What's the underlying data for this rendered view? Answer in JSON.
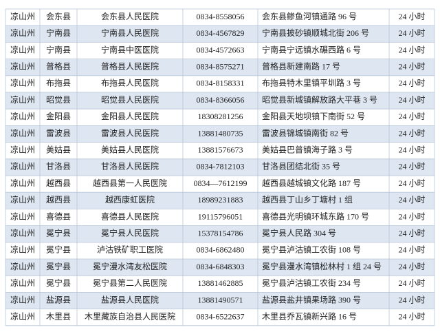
{
  "table": {
    "rows": [
      [
        "凉山州",
        "会东县",
        "会东县人民医院",
        "0834-8558056",
        "会东县鲹鱼河镇通路 96 号",
        "24 小时"
      ],
      [
        "凉山州",
        "宁南县",
        "宁南县人民医院",
        "0834-4567829",
        "宁南县披砂镇顺城北街 206 号",
        "24 小时"
      ],
      [
        "凉山州",
        "宁南县",
        "宁南县中医医院",
        "0834-4572663",
        "宁南县宁远镇水碾西路 6 号",
        "24 小时"
      ],
      [
        "凉山州",
        "普格县",
        "普格县人民医院",
        "0834-8575271",
        "普格县新建南路 17 号",
        "24 小时"
      ],
      [
        "凉山州",
        "布拖县",
        "布拖县人民医院",
        "0834-8158331",
        "布拖县特木里镇平圳路 3 号",
        "24 小时"
      ],
      [
        "凉山州",
        "昭觉县",
        "昭觉县人民医院",
        "0834-8366056",
        "昭觉县新城镇解放路大平巷 3 号",
        "24 小时"
      ],
      [
        "凉山州",
        "金阳县",
        "金阳县人民医院",
        "18308281256",
        "金阳县天地坝镇下南街 52 号",
        "24 小时"
      ],
      [
        "凉山州",
        "雷波县",
        "雷波县人民医院",
        "13881480735",
        "雷波县锦城镇南街 82 号",
        "24 小时"
      ],
      [
        "凉山州",
        "美姑县",
        "美姑县人民医院",
        "13881576673",
        "美姑县巴普镇海子路 3 号",
        "24 小时"
      ],
      [
        "凉山州",
        "甘洛县",
        "甘洛县人民医院",
        "0834-7812103",
        "甘洛县团结北街 35 号",
        "24 小时"
      ],
      [
        "凉山州",
        "越西县",
        "越西县第一人民医院",
        "0834—7612199",
        "越西县越城镇文化路 187 号",
        "24 小时"
      ],
      [
        "凉山州",
        "越西县",
        "越西康虹医院",
        "18989231883",
        "越西县丁山乡丁塘村 1 组",
        "24 小时"
      ],
      [
        "凉山州",
        "喜德县",
        "喜德县人民医院",
        "19115796051",
        "喜德县光明镇环城东路 170 号",
        "24 小时"
      ],
      [
        "凉山州",
        "冕宁县",
        "冕宁县人民医院",
        "15378154786",
        "冕宁县人民路 304 号",
        "24 小时"
      ],
      [
        "凉山州",
        "冕宁县",
        "泸沽铁矿职工医院",
        "0834-6862480",
        "冕宁县泸沽镇工农街 108 号",
        "24 小时"
      ],
      [
        "凉山州",
        "冕宁县",
        "冕宁漫水湾友松医院",
        "0834-6848303",
        "冕宁县漫水湾镇松林村 1 组 24 号",
        "24 小时"
      ],
      [
        "凉山州",
        "冕宁县",
        "冕宁县第二人民医院",
        "13881462885",
        "冕宁县泸沽镇工农街 234 号",
        "24 小时"
      ],
      [
        "凉山州",
        "盐源县",
        "盐源县人民医院",
        "13881490571",
        "盐源县盐井镇果场路 390 号",
        "24 小时"
      ],
      [
        "凉山州",
        "木里县",
        "木里藏族自治县人民医院",
        "0834-6522637",
        "木里县乔瓦镇新兴路 16 号",
        "24 小时"
      ]
    ]
  }
}
